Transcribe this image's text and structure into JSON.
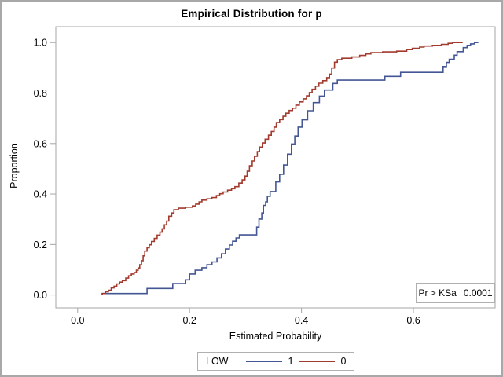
{
  "chart_data": {
    "type": "line",
    "subtype": "empirical-cdf-step",
    "title": "Empirical Distribution for p",
    "xlabel": "Estimated Probability",
    "ylabel": "Proportion",
    "xlim": [
      -0.039,
      0.746
    ],
    "ylim": [
      -0.051,
      1.063
    ],
    "xticks": [
      "0.0",
      "0.2",
      "0.4",
      "0.6"
    ],
    "xtick_values": [
      0.0,
      0.2,
      0.4,
      0.6
    ],
    "yticks": [
      "0.0",
      "0.2",
      "0.4",
      "0.6",
      "0.8",
      "1.0"
    ],
    "ytick_values": [
      0.0,
      0.2,
      0.4,
      0.6,
      0.8,
      1.0
    ],
    "grid": false,
    "frame_color": "#a6a6a6",
    "inset": {
      "label": "Pr > KSa",
      "value": "0.0001"
    },
    "legend": {
      "title": "LOW",
      "position": "bottom-center",
      "entries": [
        {
          "label": "1",
          "color": "#445694"
        },
        {
          "label": "0",
          "color": "#A23A2E"
        }
      ]
    },
    "series": [
      {
        "name": "1",
        "color": "#445694",
        "x_end": 0.716,
        "points": [
          [
            0.044,
            0.0
          ],
          [
            0.044,
            0.006
          ],
          [
            0.124,
            0.026
          ],
          [
            0.17,
            0.045
          ],
          [
            0.193,
            0.06
          ],
          [
            0.2,
            0.083
          ],
          [
            0.21,
            0.098
          ],
          [
            0.222,
            0.108
          ],
          [
            0.231,
            0.12
          ],
          [
            0.24,
            0.131
          ],
          [
            0.249,
            0.147
          ],
          [
            0.257,
            0.163
          ],
          [
            0.264,
            0.182
          ],
          [
            0.271,
            0.198
          ],
          [
            0.277,
            0.213
          ],
          [
            0.283,
            0.226
          ],
          [
            0.289,
            0.238
          ],
          [
            0.32,
            0.269
          ],
          [
            0.324,
            0.301
          ],
          [
            0.329,
            0.325
          ],
          [
            0.332,
            0.355
          ],
          [
            0.336,
            0.369
          ],
          [
            0.339,
            0.391
          ],
          [
            0.344,
            0.41
          ],
          [
            0.354,
            0.448
          ],
          [
            0.361,
            0.478
          ],
          [
            0.368,
            0.515
          ],
          [
            0.375,
            0.558
          ],
          [
            0.382,
            0.598
          ],
          [
            0.388,
            0.63
          ],
          [
            0.394,
            0.665
          ],
          [
            0.401,
            0.694
          ],
          [
            0.411,
            0.73
          ],
          [
            0.421,
            0.762
          ],
          [
            0.432,
            0.788
          ],
          [
            0.441,
            0.812
          ],
          [
            0.456,
            0.838
          ],
          [
            0.464,
            0.851
          ],
          [
            0.549,
            0.866
          ],
          [
            0.577,
            0.882
          ],
          [
            0.653,
            0.905
          ],
          [
            0.659,
            0.921
          ],
          [
            0.664,
            0.934
          ],
          [
            0.673,
            0.95
          ],
          [
            0.678,
            0.964
          ],
          [
            0.689,
            0.98
          ],
          [
            0.696,
            0.989
          ],
          [
            0.702,
            0.995
          ],
          [
            0.709,
            1.0
          ]
        ]
      },
      {
        "name": "0",
        "color": "#A23A2E",
        "x_end": 0.688,
        "points": [
          [
            0.044,
            0.0
          ],
          [
            0.044,
            0.006
          ],
          [
            0.05,
            0.013
          ],
          [
            0.055,
            0.019
          ],
          [
            0.06,
            0.028
          ],
          [
            0.065,
            0.035
          ],
          [
            0.07,
            0.044
          ],
          [
            0.075,
            0.051
          ],
          [
            0.08,
            0.057
          ],
          [
            0.086,
            0.067
          ],
          [
            0.091,
            0.076
          ],
          [
            0.096,
            0.083
          ],
          [
            0.101,
            0.089
          ],
          [
            0.105,
            0.098
          ],
          [
            0.108,
            0.107
          ],
          [
            0.111,
            0.12
          ],
          [
            0.114,
            0.136
          ],
          [
            0.117,
            0.155
          ],
          [
            0.12,
            0.174
          ],
          [
            0.124,
            0.187
          ],
          [
            0.128,
            0.199
          ],
          [
            0.132,
            0.212
          ],
          [
            0.137,
            0.224
          ],
          [
            0.142,
            0.237
          ],
          [
            0.147,
            0.249
          ],
          [
            0.151,
            0.262
          ],
          [
            0.155,
            0.278
          ],
          [
            0.159,
            0.293
          ],
          [
            0.163,
            0.312
          ],
          [
            0.168,
            0.325
          ],
          [
            0.172,
            0.338
          ],
          [
            0.18,
            0.344
          ],
          [
            0.193,
            0.348
          ],
          [
            0.205,
            0.353
          ],
          [
            0.211,
            0.36
          ],
          [
            0.217,
            0.369
          ],
          [
            0.222,
            0.376
          ],
          [
            0.231,
            0.381
          ],
          [
            0.24,
            0.386
          ],
          [
            0.248,
            0.394
          ],
          [
            0.254,
            0.401
          ],
          [
            0.26,
            0.408
          ],
          [
            0.268,
            0.415
          ],
          [
            0.275,
            0.421
          ],
          [
            0.281,
            0.429
          ],
          [
            0.288,
            0.443
          ],
          [
            0.294,
            0.456
          ],
          [
            0.299,
            0.471
          ],
          [
            0.303,
            0.49
          ],
          [
            0.307,
            0.512
          ],
          [
            0.312,
            0.531
          ],
          [
            0.316,
            0.55
          ],
          [
            0.321,
            0.568
          ],
          [
            0.325,
            0.586
          ],
          [
            0.33,
            0.602
          ],
          [
            0.335,
            0.617
          ],
          [
            0.341,
            0.633
          ],
          [
            0.346,
            0.648
          ],
          [
            0.351,
            0.665
          ],
          [
            0.355,
            0.683
          ],
          [
            0.361,
            0.695
          ],
          [
            0.367,
            0.708
          ],
          [
            0.372,
            0.72
          ],
          [
            0.378,
            0.731
          ],
          [
            0.384,
            0.74
          ],
          [
            0.39,
            0.752
          ],
          [
            0.396,
            0.765
          ],
          [
            0.403,
            0.777
          ],
          [
            0.409,
            0.789
          ],
          [
            0.414,
            0.802
          ],
          [
            0.419,
            0.815
          ],
          [
            0.425,
            0.827
          ],
          [
            0.431,
            0.839
          ],
          [
            0.438,
            0.849
          ],
          [
            0.445,
            0.861
          ],
          [
            0.45,
            0.875
          ],
          [
            0.454,
            0.899
          ],
          [
            0.459,
            0.922
          ],
          [
            0.464,
            0.932
          ],
          [
            0.472,
            0.938
          ],
          [
            0.49,
            0.943
          ],
          [
            0.504,
            0.949
          ],
          [
            0.515,
            0.955
          ],
          [
            0.524,
            0.96
          ],
          [
            0.545,
            0.963
          ],
          [
            0.57,
            0.966
          ],
          [
            0.588,
            0.972
          ],
          [
            0.598,
            0.977
          ],
          [
            0.611,
            0.982
          ],
          [
            0.619,
            0.986
          ],
          [
            0.634,
            0.989
          ],
          [
            0.65,
            0.993
          ],
          [
            0.662,
            0.997
          ],
          [
            0.67,
            1.0
          ]
        ]
      }
    ]
  }
}
